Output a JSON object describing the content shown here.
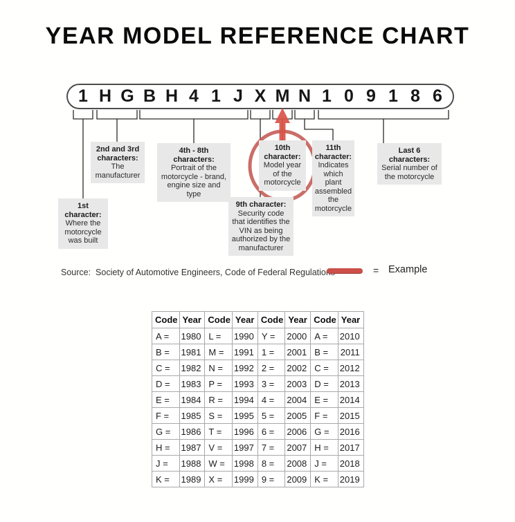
{
  "title": "YEAR MODEL REFERENCE CHART",
  "vin": {
    "characters": [
      "1",
      "H",
      "G",
      "B",
      "H",
      "4",
      "1",
      "J",
      "X",
      "M",
      "N",
      "1",
      "0",
      "9",
      "1",
      "8",
      "6"
    ]
  },
  "callouts": {
    "first": {
      "heading": "1st character:",
      "body": "Where the motorcycle was built"
    },
    "second_third": {
      "heading": "2nd and 3rd characters:",
      "body": "The manufacturer"
    },
    "fourth_eighth": {
      "heading": "4th - 8th characters:",
      "body": "Portrait of the motorcycle - brand, engine size and type"
    },
    "ninth": {
      "heading": "9th character:",
      "body": "Security code that identifies the VIN as being authorized by the manufacturer"
    },
    "tenth": {
      "heading": "10th character:",
      "body": "Model year of the motorcycle",
      "highlighted": true
    },
    "eleventh": {
      "heading": "11th character:",
      "body": "Indicates which plant assembled the motorcycle"
    },
    "last_six": {
      "heading": "Last 6 characters:",
      "body": "Serial number of the motorcycle"
    }
  },
  "source_line": "Source:  Society of Automotive Engineers, Code of Federal Regulations",
  "legend": {
    "equals": "=",
    "label": "Example"
  },
  "colors": {
    "accent_red": "#c2544e",
    "arrow_red": "#d95348",
    "callout_gray": "#e8e8e8",
    "line_black": "#2b2b2b"
  },
  "year_table": {
    "headers": [
      "Code",
      "Year",
      "Code",
      "Year",
      "Code",
      "Year",
      "Code",
      "Year"
    ],
    "rows": [
      [
        "A =",
        "1980",
        "L =",
        "1990",
        "Y =",
        "2000",
        "A =",
        "2010"
      ],
      [
        "B =",
        "1981",
        "M =",
        "1991",
        "1 =",
        "2001",
        "B =",
        "2011"
      ],
      [
        "C =",
        "1982",
        "N =",
        "1992",
        "2 =",
        "2002",
        "C =",
        "2012"
      ],
      [
        "D =",
        "1983",
        "P =",
        "1993",
        "3 =",
        "2003",
        "D =",
        "2013"
      ],
      [
        "E =",
        "1984",
        "R =",
        "1994",
        "4 =",
        "2004",
        "E =",
        "2014"
      ],
      [
        "F =",
        "1985",
        "S =",
        "1995",
        "5 =",
        "2005",
        "F =",
        "2015"
      ],
      [
        "G =",
        "1986",
        "T =",
        "1996",
        "6 =",
        "2006",
        "G =",
        "2016"
      ],
      [
        "H =",
        "1987",
        "V =",
        "1997",
        "7 =",
        "2007",
        "H =",
        "2017"
      ],
      [
        "J =",
        "1988",
        "W =",
        "1998",
        "8 =",
        "2008",
        "J =",
        "2018"
      ],
      [
        "K =",
        "1989",
        "X =",
        "1999",
        "9 =",
        "2009",
        "K =",
        "2019"
      ]
    ],
    "highlighted_entry": "M = 1991"
  }
}
